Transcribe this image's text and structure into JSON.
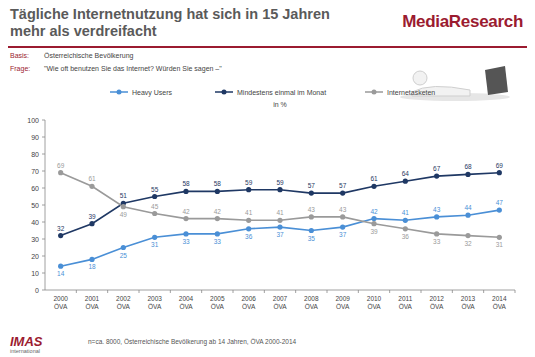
{
  "header": {
    "title": "Tägliche Internetnutzung hat sich in 15 Jahren mehr als verdreifacht",
    "logo": "MediaResearch",
    "basis_label": "Basis:",
    "basis": "Österreichische Bevölkerung",
    "frage_label": "Frage:",
    "frage": "\"Wie oft benutzen Sie das Internet? Würden Sie sagen –\""
  },
  "chart_data": {
    "type": "line",
    "y_label": "in %",
    "categories": [
      "2000 ÖVA",
      "2001 ÖVA",
      "2002 ÖVA",
      "2003 ÖVA",
      "2004 ÖVA",
      "2005 ÖVA",
      "2006 ÖVA",
      "2007 ÖVA",
      "2008 ÖVA",
      "2009 ÖVA",
      "2010 ÖVA",
      "2011 ÖVA",
      "2012 ÖVA",
      "2013 ÖVA",
      "2014 ÖVA"
    ],
    "series": [
      {
        "name": "Heavy Users",
        "color": "#4a8fd6",
        "values": [
          14,
          18,
          25,
          31,
          33,
          33,
          36,
          37,
          35,
          37,
          42,
          41,
          43,
          44,
          47
        ]
      },
      {
        "name": "Mindestens einmal im Monat",
        "color": "#1f3864",
        "values": [
          32,
          39,
          51,
          55,
          58,
          58,
          59,
          59,
          57,
          57,
          61,
          64,
          67,
          68,
          69
        ]
      },
      {
        "name": "Internetasketen",
        "color": "#9a9a9a",
        "values": [
          69,
          61,
          49,
          45,
          42,
          42,
          41,
          41,
          43,
          43,
          39,
          36,
          33,
          32,
          31
        ]
      }
    ],
    "ylim": [
      0,
      100
    ],
    "yticks": [
      0,
      10,
      20,
      30,
      40,
      50,
      60,
      70,
      80,
      90,
      100
    ],
    "grid": false,
    "data_labels": true,
    "legend": "top",
    "marker": "circle"
  },
  "footer": {
    "note": "n=ca. 8000, Österreichische Bevölkerung ab 14 Jahren, ÖVA 2000-2014",
    "logo": "IMAS",
    "logo_sub": "international"
  }
}
